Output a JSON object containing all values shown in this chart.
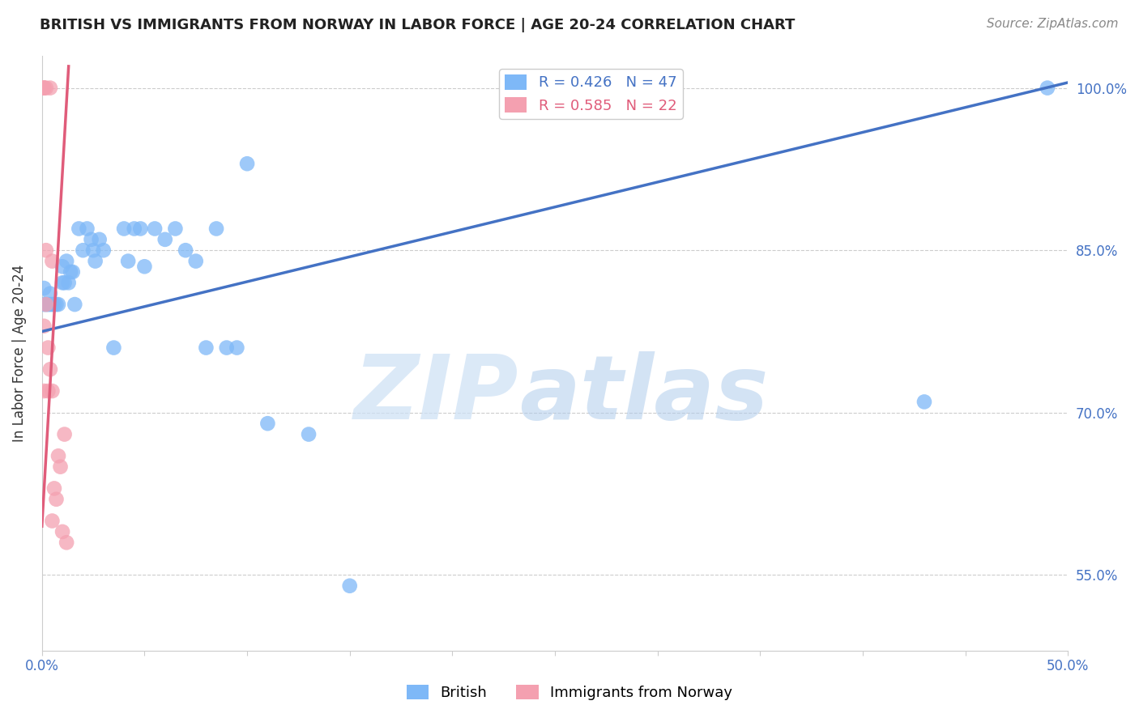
{
  "title": "BRITISH VS IMMIGRANTS FROM NORWAY IN LABOR FORCE | AGE 20-24 CORRELATION CHART",
  "source": "Source: ZipAtlas.com",
  "ylabel": "In Labor Force | Age 20-24",
  "x_min": 0.0,
  "x_max": 0.5,
  "y_min": 0.48,
  "y_max": 1.03,
  "grid_color": "#cccccc",
  "background_color": "#ffffff",
  "british_color": "#7eb8f7",
  "norway_color": "#f4a0b0",
  "british_line_color": "#4472c4",
  "norway_line_color": "#e05c7a",
  "legend_british_R": "0.426",
  "legend_british_N": "47",
  "legend_norway_R": "0.585",
  "legend_norway_N": "22",
  "british_x": [
    0.001,
    0.001,
    0.002,
    0.003,
    0.004,
    0.004,
    0.005,
    0.006,
    0.007,
    0.008,
    0.01,
    0.01,
    0.011,
    0.012,
    0.013,
    0.014,
    0.015,
    0.016,
    0.018,
    0.02,
    0.022,
    0.024,
    0.025,
    0.026,
    0.028,
    0.03,
    0.035,
    0.04,
    0.042,
    0.045,
    0.048,
    0.05,
    0.055,
    0.06,
    0.065,
    0.07,
    0.075,
    0.08,
    0.085,
    0.09,
    0.095,
    0.1,
    0.11,
    0.13,
    0.15,
    0.43,
    0.49
  ],
  "british_y": [
    0.8,
    0.815,
    0.8,
    0.8,
    0.8,
    0.81,
    0.8,
    0.8,
    0.8,
    0.8,
    0.82,
    0.835,
    0.82,
    0.84,
    0.82,
    0.83,
    0.83,
    0.8,
    0.87,
    0.85,
    0.87,
    0.86,
    0.85,
    0.84,
    0.86,
    0.85,
    0.76,
    0.87,
    0.84,
    0.87,
    0.87,
    0.835,
    0.87,
    0.86,
    0.87,
    0.85,
    0.84,
    0.76,
    0.87,
    0.76,
    0.76,
    0.93,
    0.69,
    0.68,
    0.54,
    0.71,
    1.0
  ],
  "norway_x": [
    0.001,
    0.001,
    0.001,
    0.001,
    0.001,
    0.002,
    0.002,
    0.002,
    0.003,
    0.003,
    0.004,
    0.004,
    0.005,
    0.005,
    0.005,
    0.006,
    0.007,
    0.008,
    0.009,
    0.01,
    0.011,
    0.012
  ],
  "norway_y": [
    1.0,
    1.0,
    1.0,
    0.78,
    0.72,
    1.0,
    0.8,
    0.85,
    0.76,
    0.72,
    1.0,
    0.74,
    0.84,
    0.72,
    0.6,
    0.63,
    0.62,
    0.66,
    0.65,
    0.59,
    0.68,
    0.58
  ]
}
